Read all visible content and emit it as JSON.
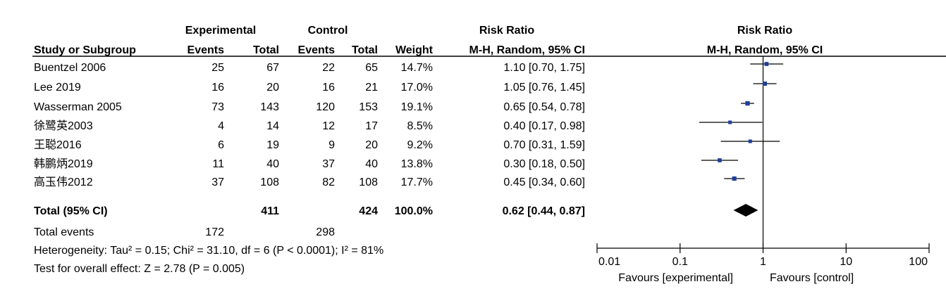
{
  "headers": {
    "experimental": "Experimental",
    "control": "Control",
    "risk_ratio_table": "Risk Ratio",
    "risk_ratio_plot": "Risk Ratio",
    "study": "Study or Subgroup",
    "events_exp": "Events",
    "total_exp": "Total",
    "events_ctl": "Events",
    "total_ctl": "Total",
    "weight": "Weight",
    "method_table": "M-H, Random, 95% CI",
    "method_plot": "M-H, Random, 95% CI"
  },
  "rows": [
    {
      "study": "Buentzel 2006",
      "e_events": "25",
      "e_total": "67",
      "c_events": "22",
      "c_total": "65",
      "weight": "14.7%",
      "ci_text": "1.10 [0.70, 1.75]"
    },
    {
      "study": "Lee 2019",
      "e_events": "16",
      "e_total": "20",
      "c_events": "16",
      "c_total": "21",
      "weight": "17.0%",
      "ci_text": "1.05 [0.76, 1.45]"
    },
    {
      "study": "Wasserman 2005",
      "e_events": "73",
      "e_total": "143",
      "c_events": "120",
      "c_total": "153",
      "weight": "19.1%",
      "ci_text": "0.65 [0.54, 0.78]"
    },
    {
      "study": "徐鹭英2003",
      "e_events": "4",
      "e_total": "14",
      "c_events": "12",
      "c_total": "17",
      "weight": "8.5%",
      "ci_text": "0.40 [0.17, 0.98]"
    },
    {
      "study": "王聪2016",
      "e_events": "6",
      "e_total": "19",
      "c_events": "9",
      "c_total": "20",
      "weight": "9.2%",
      "ci_text": "0.70 [0.31, 1.59]"
    },
    {
      "study": "韩鹏炳2019",
      "e_events": "11",
      "e_total": "40",
      "c_events": "37",
      "c_total": "40",
      "weight": "13.8%",
      "ci_text": "0.30 [0.18, 0.50]"
    },
    {
      "study": "高玉伟2012",
      "e_events": "37",
      "e_total": "108",
      "c_events": "82",
      "c_total": "108",
      "weight": "17.7%",
      "ci_text": "0.45 [0.34, 0.60]"
    }
  ],
  "total_row": {
    "label": "Total (95% CI)",
    "e_total": "411",
    "c_total": "424",
    "weight": "100.0%",
    "ci_text": "0.62 [0.44, 0.87]"
  },
  "total_events": {
    "label": "Total events",
    "e_events": "172",
    "c_events": "298"
  },
  "heterogeneity": "Heterogeneity: Tau² = 0.15; Chi² = 31.10, df = 6 (P < 0.0001); I² = 81%",
  "overall_effect": "Test for overall effect: Z = 2.78 (P = 0.005)",
  "favours_left": "Favours [experimental]",
  "favours_right": "Favours [control]",
  "colors": {
    "marker": "#1f3f9a",
    "line": "#000000"
  },
  "chart_data": {
    "type": "forest",
    "xscale": "log",
    "xlim": [
      0.01,
      100
    ],
    "xticks": [
      0.01,
      0.1,
      1,
      10,
      100
    ],
    "xtick_labels": [
      "0.01",
      "0.1",
      "1",
      "10",
      "100"
    ],
    "reference_line": 1,
    "studies": [
      {
        "name": "Buentzel 2006",
        "rr": 1.1,
        "lower": 0.7,
        "upper": 1.75,
        "weight": 14.7
      },
      {
        "name": "Lee 2019",
        "rr": 1.05,
        "lower": 0.76,
        "upper": 1.45,
        "weight": 17.0
      },
      {
        "name": "Wasserman 2005",
        "rr": 0.65,
        "lower": 0.54,
        "upper": 0.78,
        "weight": 19.1
      },
      {
        "name": "徐鹭英2003",
        "rr": 0.4,
        "lower": 0.17,
        "upper": 0.98,
        "weight": 8.5
      },
      {
        "name": "王聪2016",
        "rr": 0.7,
        "lower": 0.31,
        "upper": 1.59,
        "weight": 9.2
      },
      {
        "name": "韩鹏炳2019",
        "rr": 0.3,
        "lower": 0.18,
        "upper": 0.5,
        "weight": 13.8
      },
      {
        "name": "高玉伟2012",
        "rr": 0.45,
        "lower": 0.34,
        "upper": 0.6,
        "weight": 17.7
      }
    ],
    "pooled": {
      "rr": 0.62,
      "lower": 0.44,
      "upper": 0.87
    }
  }
}
